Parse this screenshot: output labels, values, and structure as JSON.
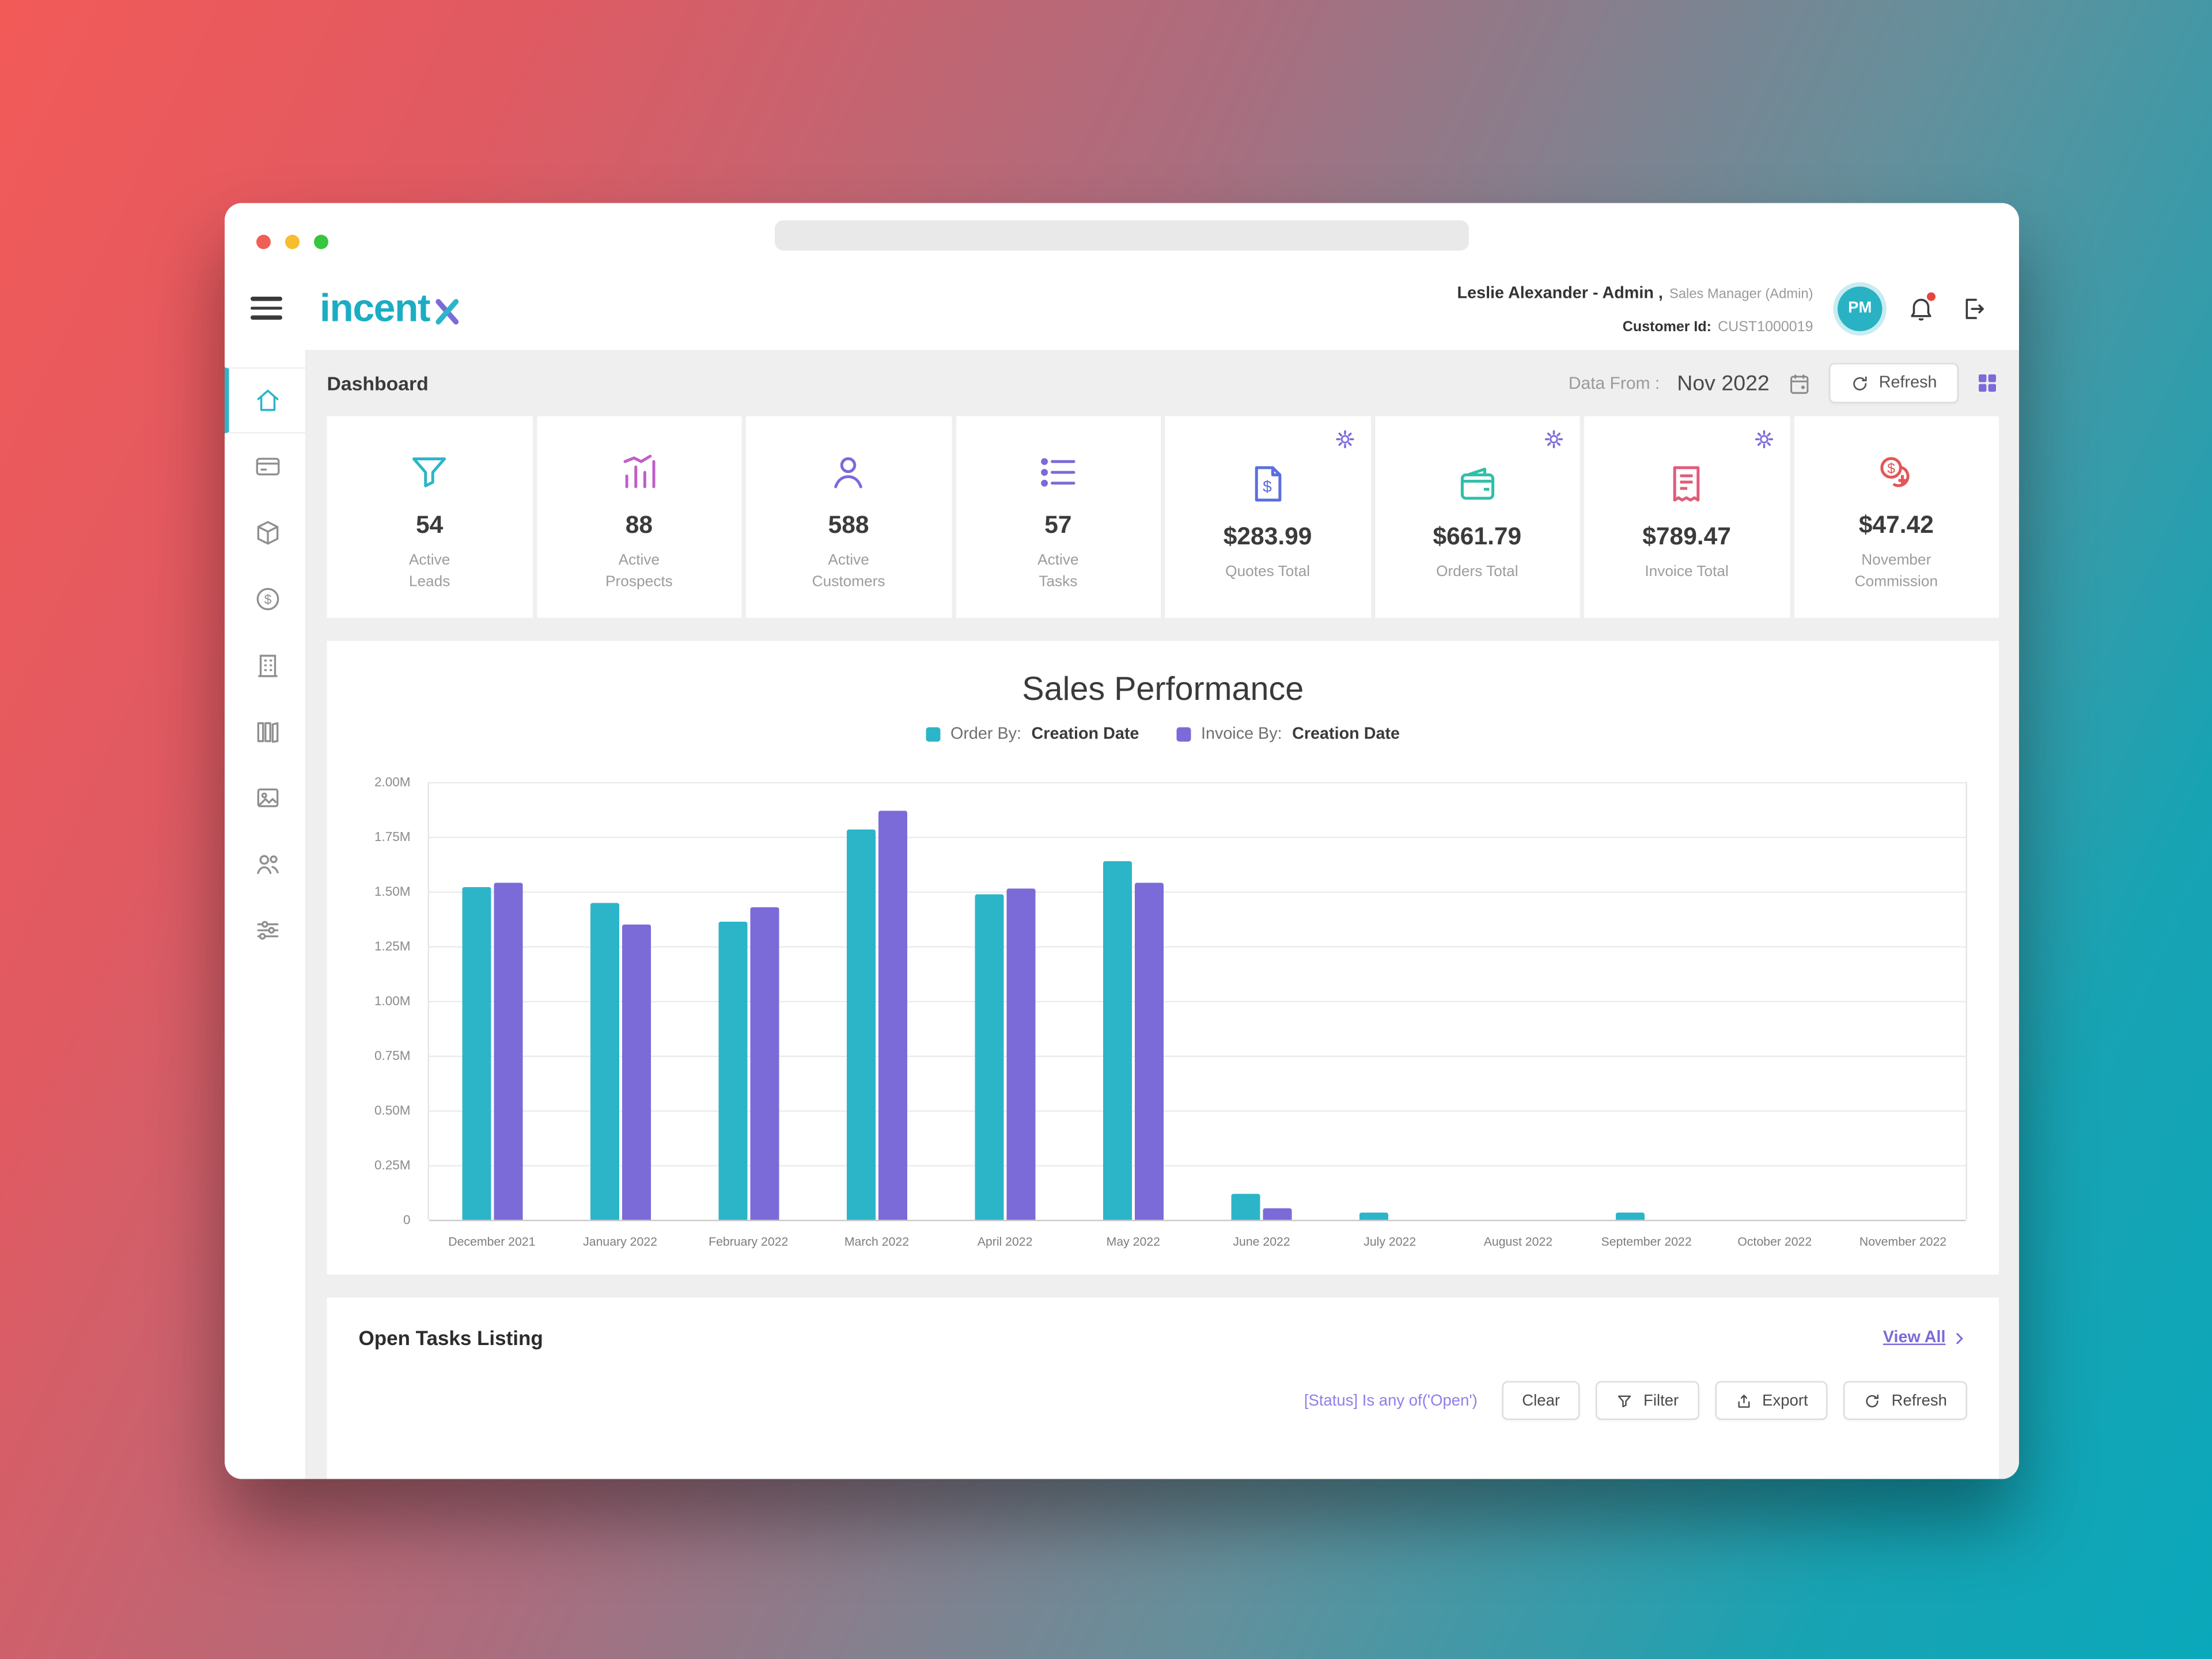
{
  "header": {
    "logo_text": "incent",
    "user_name": "Leslie Alexander - Admin ,",
    "user_role": "Sales Manager (Admin)",
    "customer_id_label": "Customer Id:",
    "customer_id": "CUST1000019",
    "avatar_initials": "PM",
    "icons": [
      "hamburger-menu-icon",
      "notification-bell-icon",
      "logout-icon"
    ]
  },
  "sidebar": {
    "items": [
      "home-icon",
      "card-icon",
      "package-icon",
      "dollar-icon",
      "building-icon",
      "library-icon",
      "image-icon",
      "people-icon",
      "sliders-icon"
    ],
    "active_index": 0
  },
  "toolbar": {
    "page_title": "Dashboard",
    "data_from_label": "Data From :",
    "data_from_value": "Nov 2022",
    "refresh_label": "Refresh",
    "icons": [
      "calendar-icon",
      "refresh-icon",
      "widgets-grid-icon"
    ]
  },
  "kpis": [
    {
      "value": "54",
      "label": "Active\nLeads",
      "icon": "funnel-icon",
      "color": "#2cb5c8",
      "gear": false
    },
    {
      "value": "88",
      "label": "Active\nProspects",
      "icon": "prospects-chart-icon",
      "color": "#c05ec9",
      "gear": false
    },
    {
      "value": "588",
      "label": "Active\nCustomers",
      "icon": "person-icon",
      "color": "#7a6bd8",
      "gear": false
    },
    {
      "value": "57",
      "label": "Active\nTasks",
      "icon": "checklist-icon",
      "color": "#7a6bd8",
      "gear": false
    },
    {
      "value": "$283.99",
      "label": "Quotes Total",
      "icon": "quote-document-icon",
      "color": "#5b6ee0",
      "gear": true
    },
    {
      "value": "$661.79",
      "label": "Orders Total",
      "icon": "wallet-icon",
      "color": "#2fbfa8",
      "gear": true
    },
    {
      "value": "$789.47",
      "label": "Invoice Total",
      "icon": "invoice-icon",
      "color": "#e05c7a",
      "gear": true
    },
    {
      "value": "$47.42",
      "label": "November\nCommission",
      "icon": "commission-coins-icon",
      "color": "#e25757",
      "gear": false
    }
  ],
  "chart_data": {
    "type": "bar",
    "title": "Sales Performance",
    "categories": [
      "December 2021",
      "January 2022",
      "February 2022",
      "March 2022",
      "April 2022",
      "May 2022",
      "June 2022",
      "July 2022",
      "August 2022",
      "September 2022",
      "October 2022",
      "November 2022"
    ],
    "series": [
      {
        "key": "order",
        "legend_label": "Order By:",
        "legend_value": "Creation Date",
        "color": "#2cb5c8",
        "values": [
          1.52,
          1.45,
          1.36,
          1.78,
          1.49,
          1.64,
          0.12,
          0.03,
          0,
          0.03,
          0,
          0
        ]
      },
      {
        "key": "invoice",
        "legend_label": "Invoice By:",
        "legend_value": "Creation Date",
        "color": "#7a6bd8",
        "values": [
          1.54,
          1.35,
          1.43,
          1.87,
          1.51,
          1.54,
          0.05,
          0,
          0,
          0,
          0,
          0
        ]
      }
    ],
    "ylim": [
      0,
      2
    ],
    "yticks": [
      "2.00M",
      "1.75M",
      "1.50M",
      "1.25M",
      "1.00M",
      "0.75M",
      "0.50M",
      "0.25M",
      "0"
    ],
    "xlabel": "",
    "ylabel": "",
    "grid": "horizontal",
    "legend_position": "top-center"
  },
  "tasks": {
    "title": "Open Tasks Listing",
    "view_all_label": "View All",
    "filter_status": "[Status] Is any of('Open')",
    "clear_label": "Clear",
    "filter_label": "Filter",
    "export_label": "Export",
    "refresh_label": "Refresh",
    "icons": [
      "filter-funnel-icon",
      "export-icon",
      "refresh-icon",
      "chevron-right-icon"
    ]
  },
  "colors": {
    "accent_teal": "#2cb5c8",
    "accent_purple": "#7a6bd8",
    "notification_badge": "#e5453d",
    "content_background": "#efefef"
  }
}
